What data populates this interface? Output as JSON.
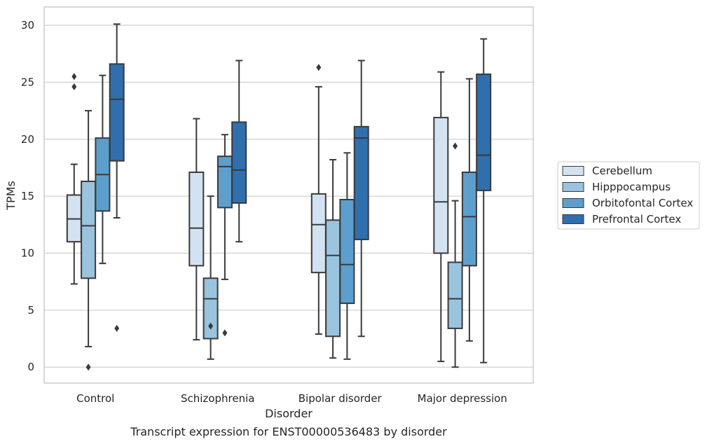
{
  "chart_data": {
    "type": "box",
    "title": "",
    "caption": "Transcript expression for ENST00000536483 by disorder",
    "xlabel": "Disorder",
    "ylabel": "TPMs",
    "ylim": [
      -1.4,
      31.6
    ],
    "yticks": [
      0,
      5,
      10,
      15,
      20,
      25,
      30
    ],
    "grid": "horizontal",
    "legend_position": "right",
    "categories": [
      "Control",
      "Schizophrenia",
      "Bipolar disorder",
      "Major depression"
    ],
    "series": [
      {
        "name": "Cerebellum",
        "color": "#d3e2f1",
        "boxes": [
          {
            "whisker_low": 7.3,
            "q1": 11.0,
            "median": 13.0,
            "q3": 15.1,
            "whisker_high": 17.8,
            "outliers": [
              24.6,
              25.5
            ]
          },
          {
            "whisker_low": 2.4,
            "q1": 8.9,
            "median": 12.2,
            "q3": 17.1,
            "whisker_high": 21.8,
            "outliers": []
          },
          {
            "whisker_low": 2.9,
            "q1": 8.3,
            "median": 12.5,
            "q3": 15.2,
            "whisker_high": 24.6,
            "outliers": [
              26.3
            ]
          },
          {
            "whisker_low": 0.5,
            "q1": 10.0,
            "median": 14.5,
            "q3": 21.9,
            "whisker_high": 25.9,
            "outliers": []
          }
        ]
      },
      {
        "name": "Hipppocampus",
        "color": "#9ac3de",
        "boxes": [
          {
            "whisker_low": 1.8,
            "q1": 7.8,
            "median": 12.4,
            "q3": 16.3,
            "whisker_high": 22.5,
            "outliers": [
              0.0
            ]
          },
          {
            "whisker_low": 0.7,
            "q1": 2.5,
            "median": 6.0,
            "q3": 7.8,
            "whisker_high": 15.0,
            "outliers": [
              3.6
            ]
          },
          {
            "whisker_low": 0.8,
            "q1": 2.7,
            "median": 9.8,
            "q3": 12.9,
            "whisker_high": 18.2,
            "outliers": []
          },
          {
            "whisker_low": 0.0,
            "q1": 3.4,
            "median": 6.0,
            "q3": 9.2,
            "whisker_high": 14.6,
            "outliers": [
              19.4
            ]
          }
        ]
      },
      {
        "name": "Orbitofontal Cortex",
        "color": "#5c9fcd",
        "boxes": [
          {
            "whisker_low": 9.1,
            "q1": 13.7,
            "median": 16.9,
            "q3": 20.1,
            "whisker_high": 25.6,
            "outliers": []
          },
          {
            "whisker_low": 7.7,
            "q1": 14.0,
            "median": 17.6,
            "q3": 18.5,
            "whisker_high": 20.4,
            "outliers": [
              3.0
            ]
          },
          {
            "whisker_low": 0.7,
            "q1": 5.6,
            "median": 9.0,
            "q3": 14.7,
            "whisker_high": 18.8,
            "outliers": []
          },
          {
            "whisker_low": 2.3,
            "q1": 8.9,
            "median": 13.2,
            "q3": 17.1,
            "whisker_high": 25.3,
            "outliers": []
          }
        ]
      },
      {
        "name": "Prefrontal Cortex",
        "color": "#2f6fae",
        "boxes": [
          {
            "whisker_low": 13.1,
            "q1": 18.1,
            "median": 23.5,
            "q3": 26.6,
            "whisker_high": 30.1,
            "outliers": [
              3.4
            ]
          },
          {
            "whisker_low": 11.0,
            "q1": 14.4,
            "median": 17.3,
            "q3": 21.5,
            "whisker_high": 26.9,
            "outliers": []
          },
          {
            "whisker_low": 2.7,
            "q1": 11.2,
            "median": 20.1,
            "q3": 21.1,
            "whisker_high": 26.9,
            "outliers": []
          },
          {
            "whisker_low": 0.4,
            "q1": 15.5,
            "median": 18.6,
            "q3": 25.7,
            "whisker_high": 28.8,
            "outliers": []
          }
        ]
      }
    ]
  }
}
